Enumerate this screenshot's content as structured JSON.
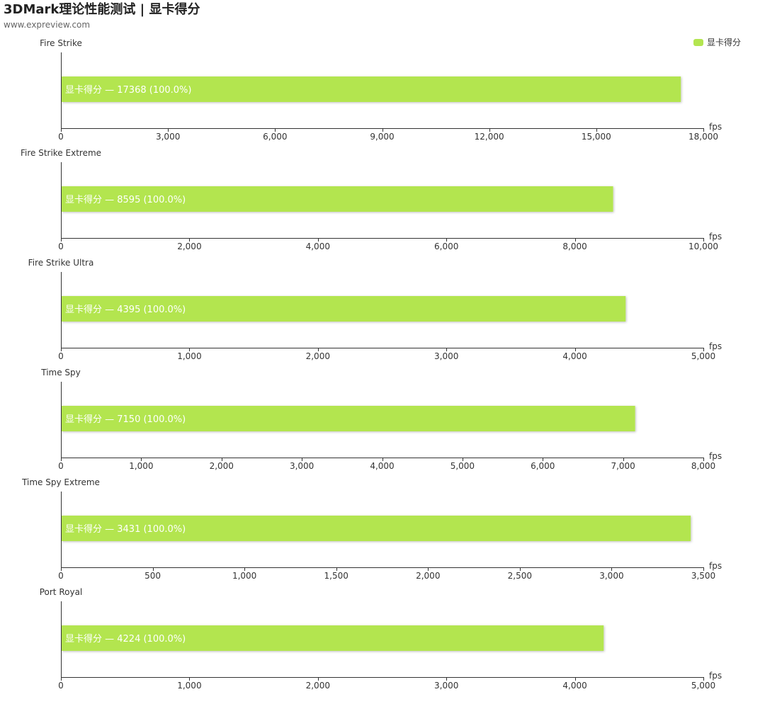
{
  "header": {
    "title": "3DMark理论性能测试 | 显卡得分",
    "subtitle": "www.expreview.com"
  },
  "legend": {
    "label": "显卡得分",
    "color": "#b3e550"
  },
  "chart_data": [
    {
      "type": "bar",
      "title": "Fire Strike",
      "categories": [
        ""
      ],
      "series": [
        {
          "name": "显卡得分",
          "values": [
            17368
          ]
        }
      ],
      "xlabel": "fps",
      "xlim": [
        0,
        18000
      ],
      "ticks": [
        0,
        3000,
        6000,
        9000,
        12000,
        15000,
        18000
      ],
      "tick_labels": [
        "0",
        "3,000",
        "6,000",
        "9,000",
        "12,000",
        "15,000",
        "18,000"
      ],
      "bar_label": "显卡得分  —  17368 (100.0%)"
    },
    {
      "type": "bar",
      "title": "Fire Strike Extreme",
      "categories": [
        ""
      ],
      "series": [
        {
          "name": "显卡得分",
          "values": [
            8595
          ]
        }
      ],
      "xlabel": "fps",
      "xlim": [
        0,
        10000
      ],
      "ticks": [
        0,
        2000,
        4000,
        6000,
        8000,
        10000
      ],
      "tick_labels": [
        "0",
        "2,000",
        "4,000",
        "6,000",
        "8,000",
        "10,000"
      ],
      "bar_label": "显卡得分  —  8595 (100.0%)"
    },
    {
      "type": "bar",
      "title": "Fire Strike Ultra",
      "categories": [
        ""
      ],
      "series": [
        {
          "name": "显卡得分",
          "values": [
            4395
          ]
        }
      ],
      "xlabel": "fps",
      "xlim": [
        0,
        5000
      ],
      "ticks": [
        0,
        1000,
        2000,
        3000,
        4000,
        5000
      ],
      "tick_labels": [
        "0",
        "1,000",
        "2,000",
        "3,000",
        "4,000",
        "5,000"
      ],
      "bar_label": "显卡得分  —  4395 (100.0%)"
    },
    {
      "type": "bar",
      "title": "Time Spy",
      "categories": [
        ""
      ],
      "series": [
        {
          "name": "显卡得分",
          "values": [
            7150
          ]
        }
      ],
      "xlabel": "fps",
      "xlim": [
        0,
        8000
      ],
      "ticks": [
        0,
        1000,
        2000,
        3000,
        4000,
        5000,
        6000,
        7000,
        8000
      ],
      "tick_labels": [
        "0",
        "1,000",
        "2,000",
        "3,000",
        "4,000",
        "5,000",
        "6,000",
        "7,000",
        "8,000"
      ],
      "bar_label": "显卡得分  —  7150 (100.0%)"
    },
    {
      "type": "bar",
      "title": "Time Spy Extreme",
      "categories": [
        ""
      ],
      "series": [
        {
          "name": "显卡得分",
          "values": [
            3431
          ]
        }
      ],
      "xlabel": "fps",
      "xlim": [
        0,
        3500
      ],
      "ticks": [
        0,
        500,
        1000,
        1500,
        2000,
        2500,
        3000,
        3500
      ],
      "tick_labels": [
        "0",
        "500",
        "1,000",
        "1,500",
        "2,000",
        "2,500",
        "3,000",
        "3,500"
      ],
      "bar_label": "显卡得分  —  3431 (100.0%)"
    },
    {
      "type": "bar",
      "title": "Port Royal",
      "categories": [
        ""
      ],
      "series": [
        {
          "name": "显卡得分",
          "values": [
            4224
          ]
        }
      ],
      "xlabel": "fps",
      "xlim": [
        0,
        5000
      ],
      "ticks": [
        0,
        1000,
        2000,
        3000,
        4000,
        5000
      ],
      "tick_labels": [
        "0",
        "1,000",
        "2,000",
        "3,000",
        "4,000",
        "5,000"
      ],
      "bar_label": "显卡得分  —  4224 (100.0%)"
    }
  ]
}
